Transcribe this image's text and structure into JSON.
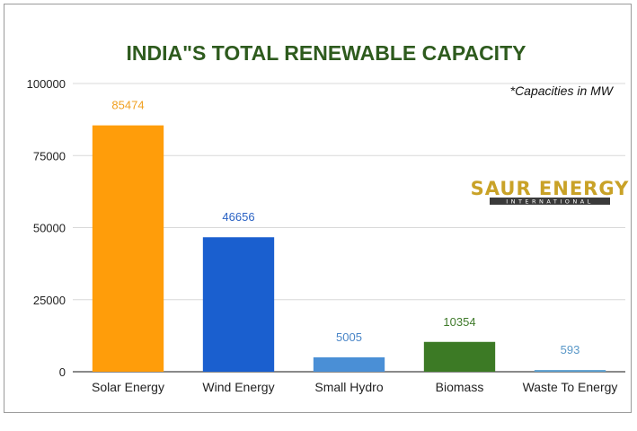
{
  "chart_data": {
    "type": "bar",
    "title": "INDIA\"S TOTAL RENEWABLE CAPACITY",
    "note": "*Capacities in MW",
    "categories": [
      "Solar Energy",
      "Wind Energy",
      "Small Hydro",
      "Biomass",
      "Waste To Energy"
    ],
    "values": [
      85474,
      46656,
      5005,
      10354,
      593
    ],
    "value_labels": [
      "85474",
      "46656",
      "5005",
      "10354",
      "593"
    ],
    "colors": [
      "#ff9d0a",
      "#1a5fcf",
      "#4a8fd6",
      "#3c7a25",
      "#5a9fd0"
    ],
    "label_colors": [
      "#f0a020",
      "#2a62c4",
      "#4a86c8",
      "#3f7a2a",
      "#5a98c8"
    ],
    "ylim": [
      0,
      100000
    ],
    "yticks": [
      0,
      25000,
      50000,
      75000,
      100000
    ],
    "ytick_labels": [
      "0",
      "25000",
      "50000",
      "75000",
      "100000"
    ],
    "grid": true,
    "xlabel": "",
    "ylabel": ""
  },
  "logo": {
    "name": "SAUR ENERGY",
    "tagline": "INTERNATIONAL",
    "color": "#c9a227"
  }
}
